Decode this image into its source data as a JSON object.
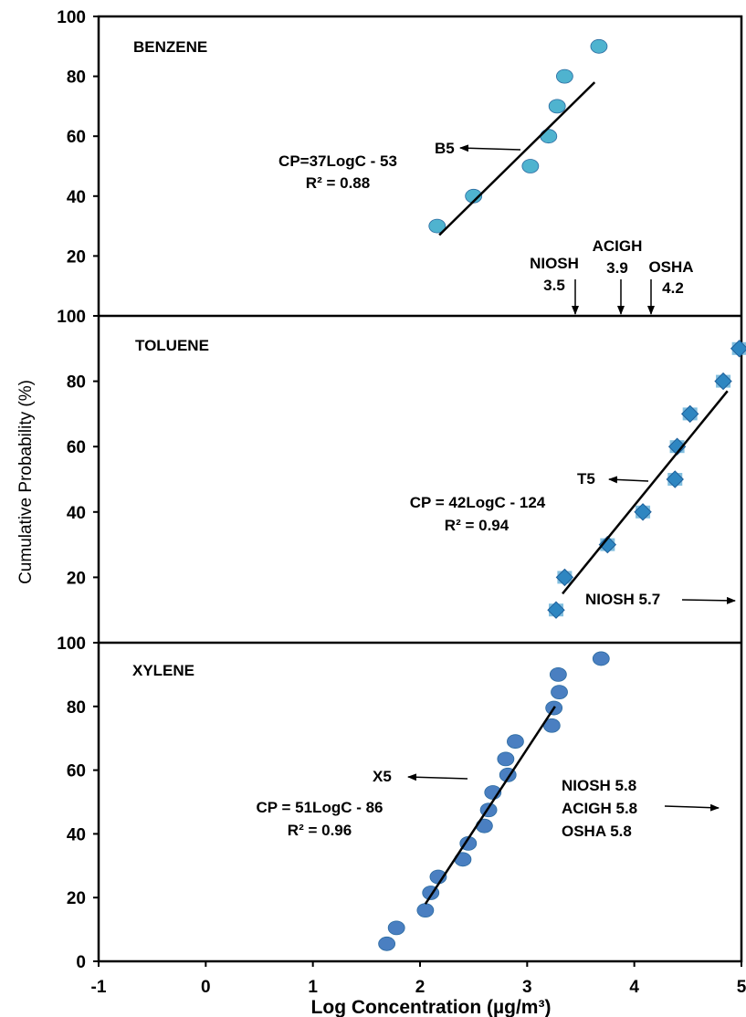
{
  "chart_data": {
    "type": "scatter",
    "xlabel": "Log Concentration (µg/m³)",
    "ylabel": "Cumulative Probability (%)",
    "xlim": [
      -1,
      5
    ],
    "x_ticks": [
      "-1",
      "0",
      "1",
      "2",
      "3",
      "4",
      "5"
    ],
    "panels": [
      {
        "title": "BENZENE",
        "ylim": [
          0,
          100
        ],
        "y_ticks": [
          "100",
          "80",
          "60",
          "40",
          "20"
        ],
        "marker": "circle",
        "color": "#4fb3cf",
        "points": [
          {
            "x": 2.16,
            "y": 30
          },
          {
            "x": 2.5,
            "y": 40
          },
          {
            "x": 3.03,
            "y": 50
          },
          {
            "x": 3.2,
            "y": 60
          },
          {
            "x": 3.28,
            "y": 70
          },
          {
            "x": 3.35,
            "y": 80
          },
          {
            "x": 3.67,
            "y": 90
          }
        ],
        "fit": {
          "x": [
            2.18,
            3.63
          ],
          "y": [
            27,
            78
          ]
        },
        "equation": "CP=37LogC - 53",
        "r2": "R² = 0.88",
        "series_label": "B5",
        "limits": [
          {
            "name": "NIOSH",
            "value": "3.5",
            "x": 3.5
          },
          {
            "name": "ACIGH",
            "value": "3.9",
            "x": 3.9
          },
          {
            "name": "OSHA",
            "value": "4.2",
            "x": 4.2
          }
        ]
      },
      {
        "title": "TOLUENE",
        "ylim": [
          0,
          100
        ],
        "y_ticks": [
          "100",
          "80",
          "60",
          "40",
          "20"
        ],
        "marker": "diamond",
        "color": "#2e86c1",
        "points": [
          {
            "x": 3.27,
            "y": 10
          },
          {
            "x": 3.35,
            "y": 20
          },
          {
            "x": 3.75,
            "y": 30
          },
          {
            "x": 4.08,
            "y": 40
          },
          {
            "x": 4.38,
            "y": 50
          },
          {
            "x": 4.4,
            "y": 60
          },
          {
            "x": 4.52,
            "y": 70
          },
          {
            "x": 4.83,
            "y": 80
          },
          {
            "x": 4.98,
            "y": 90
          }
        ],
        "fit": {
          "x": [
            3.33,
            4.87
          ],
          "y": [
            15,
            77
          ]
        },
        "equation": "CP = 42LogC - 124",
        "r2": "R² = 0.94",
        "series_label": "T5",
        "limits": [
          {
            "name": "NIOSH 5.7",
            "value": "",
            "x": 5.7
          }
        ]
      },
      {
        "title": "XYLENE",
        "ylim": [
          0,
          100
        ],
        "y_ticks": [
          "100",
          "80",
          "60",
          "40",
          "20",
          "0"
        ],
        "marker": "circle",
        "color": "#4a7fc1",
        "points": [
          {
            "x": 1.69,
            "y": 5.5
          },
          {
            "x": 1.78,
            "y": 10.5
          },
          {
            "x": 2.05,
            "y": 16
          },
          {
            "x": 2.1,
            "y": 21.5
          },
          {
            "x": 2.17,
            "y": 26.5
          },
          {
            "x": 2.4,
            "y": 32
          },
          {
            "x": 2.45,
            "y": 37
          },
          {
            "x": 2.6,
            "y": 42.5
          },
          {
            "x": 2.64,
            "y": 47.5
          },
          {
            "x": 2.68,
            "y": 53
          },
          {
            "x": 2.82,
            "y": 58.5
          },
          {
            "x": 2.8,
            "y": 63.5
          },
          {
            "x": 2.89,
            "y": 69
          },
          {
            "x": 3.23,
            "y": 74
          },
          {
            "x": 3.25,
            "y": 79.5
          },
          {
            "x": 3.3,
            "y": 84.5
          },
          {
            "x": 3.29,
            "y": 90
          },
          {
            "x": 3.69,
            "y": 95
          }
        ],
        "fit": {
          "x": [
            2.05,
            3.26
          ],
          "y": [
            18,
            80
          ]
        },
        "equation": "CP = 51LogC - 86",
        "r2": "R² = 0.96",
        "series_label": "X5",
        "limits": [
          {
            "name": "NIOSH  5.8",
            "value": "",
            "x": 5.8
          },
          {
            "name": "ACIGH 5.8",
            "value": "",
            "x": 5.8
          },
          {
            "name": "OSHA 5.8",
            "value": "",
            "x": 5.8
          }
        ]
      }
    ]
  }
}
